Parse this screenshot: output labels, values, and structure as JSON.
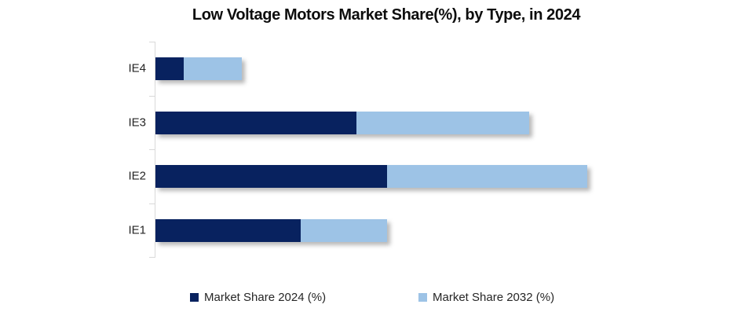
{
  "chart_data": {
    "type": "bar",
    "orientation": "horizontal",
    "stacked": true,
    "title": "Low Voltage Motors Market Share(%), by Type, in 2024",
    "categories": [
      "IE4",
      "IE3",
      "IE2",
      "IE1"
    ],
    "series": [
      {
        "name": "Market Share 2024 (%)",
        "color": "#08225f",
        "values": [
          5,
          36,
          41.5,
          26
        ]
      },
      {
        "name": "Market Share 2032 (%)",
        "color": "#9dc3e6",
        "values": [
          10.5,
          31,
          36,
          15.5
        ]
      }
    ],
    "xlabel": "",
    "ylabel": "",
    "xlim": [
      0,
      100
    ],
    "grid": false,
    "axis_line_color": "#d9d9d9",
    "legend_position": "bottom"
  }
}
